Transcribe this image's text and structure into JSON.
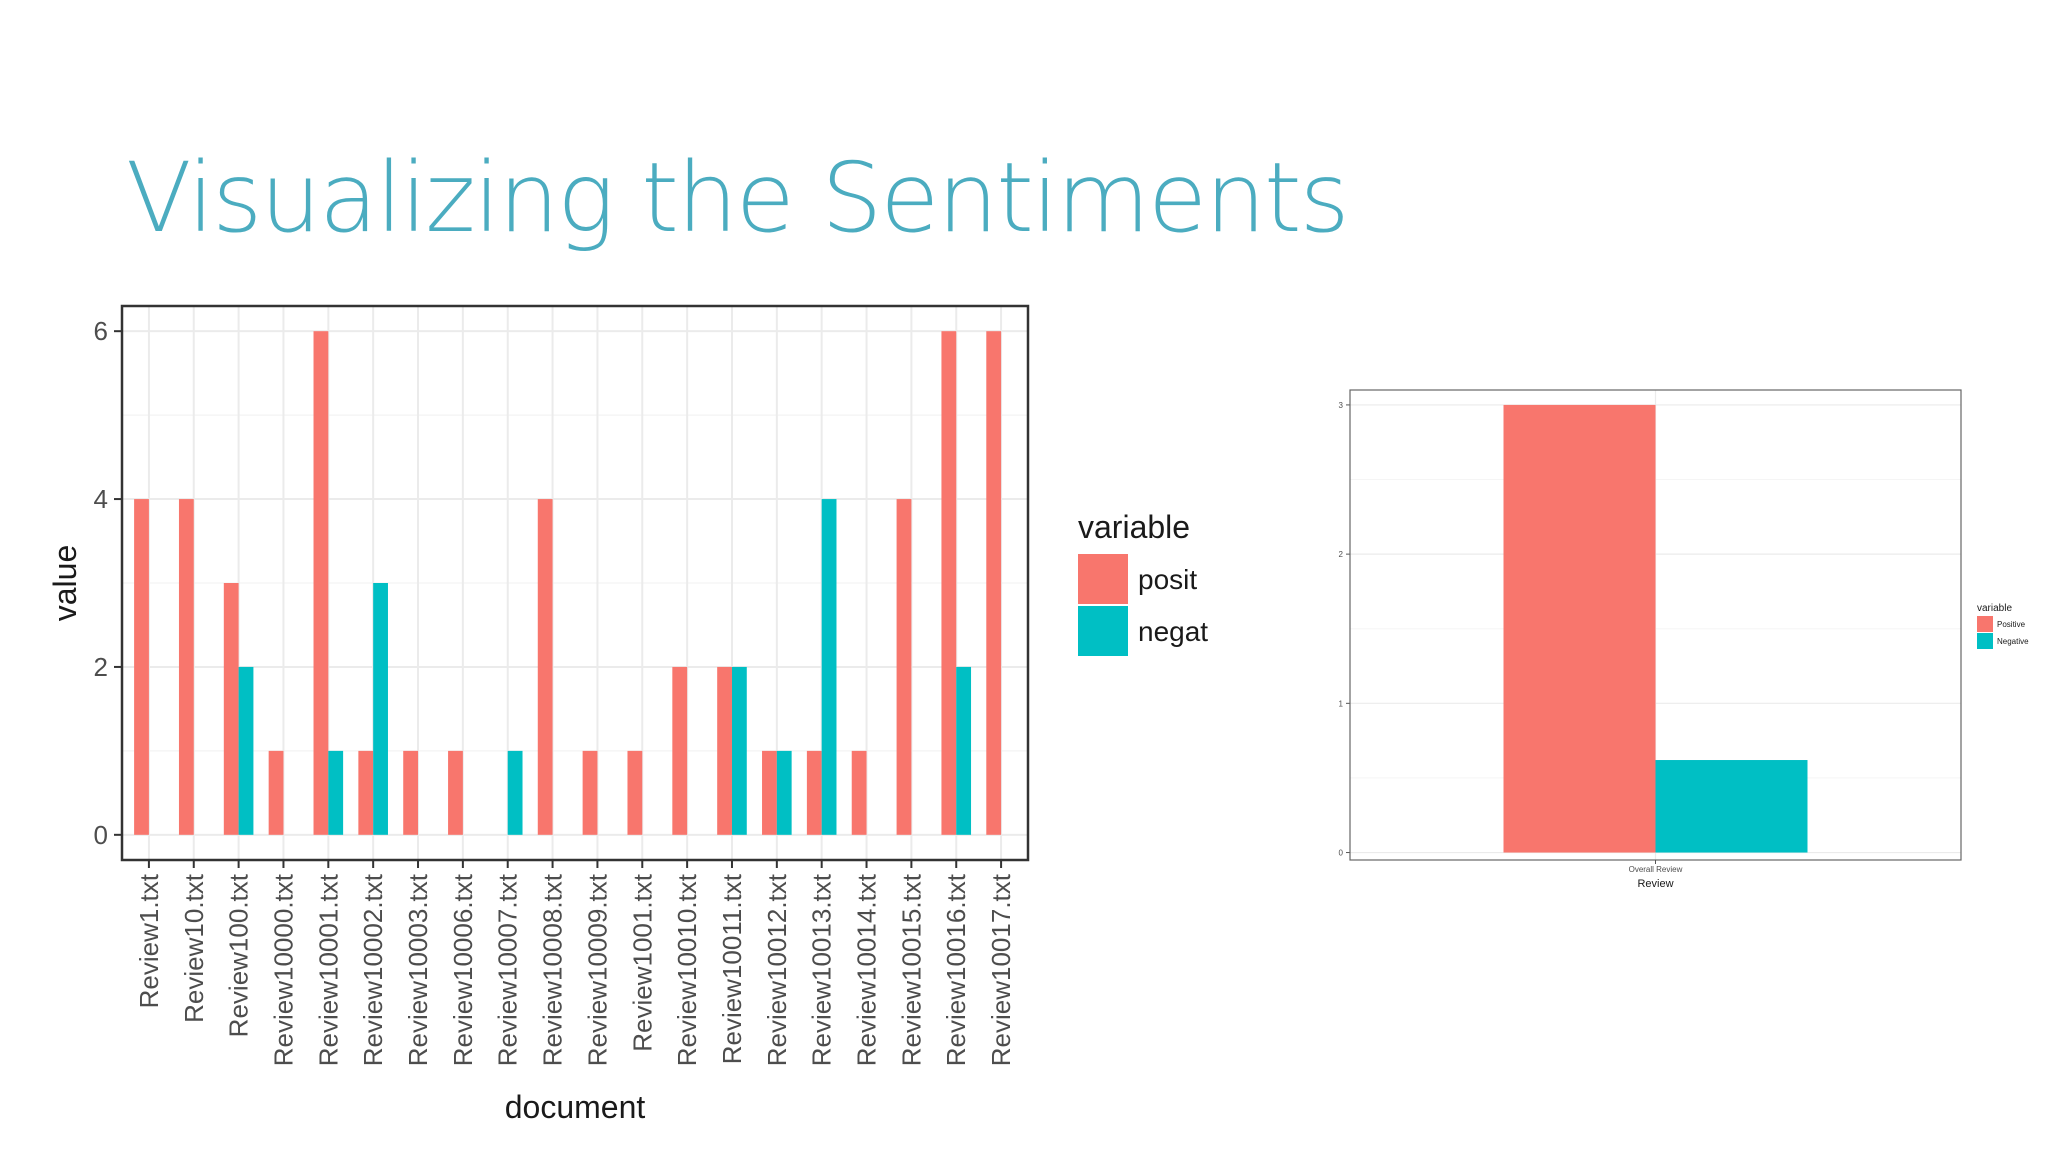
{
  "slide": {
    "title": "Visualizing the Sentiments"
  },
  "colors": {
    "title": "#4bacc0",
    "positive": "#f8766d",
    "negative": "#00bfc4",
    "grid_major": "#ebebeb",
    "grid_minor": "#f5f5f5",
    "panel_border": "#333333"
  },
  "chart_data": [
    {
      "type": "bar",
      "xlabel": "document",
      "ylabel": "value",
      "ylim": [
        0,
        6.3
      ],
      "yticks": [
        0,
        2,
        4,
        6
      ],
      "grid": true,
      "legend": {
        "title": "variable",
        "placement": "right"
      },
      "categories": [
        "Review1.txt",
        "Review10.txt",
        "Review100.txt",
        "Review10000.txt",
        "Review10001.txt",
        "Review10002.txt",
        "Review10003.txt",
        "Review10006.txt",
        "Review10007.txt",
        "Review10008.txt",
        "Review10009.txt",
        "Review1001.txt",
        "Review10010.txt",
        "Review10011.txt",
        "Review10012.txt",
        "Review10013.txt",
        "Review10014.txt",
        "Review10015.txt",
        "Review10016.txt",
        "Review10017.txt"
      ],
      "series": [
        {
          "name": "posit",
          "values": [
            4,
            4,
            3,
            1,
            6,
            1,
            1,
            1,
            0,
            4,
            1,
            1,
            2,
            2,
            1,
            1,
            1,
            4,
            6,
            6
          ]
        },
        {
          "name": "negat",
          "values": [
            0,
            0,
            2,
            0,
            1,
            3,
            0,
            0,
            1,
            0,
            0,
            0,
            0,
            2,
            1,
            4,
            0,
            0,
            2,
            0
          ]
        }
      ]
    },
    {
      "type": "bar",
      "xlabel": "Review",
      "ylabel": "",
      "ylim": [
        -0.05,
        3.1
      ],
      "yticks": [
        0,
        1,
        2,
        3
      ],
      "grid": true,
      "legend": {
        "title": "variable",
        "placement": "right"
      },
      "categories": [
        "Overall Review"
      ],
      "series": [
        {
          "name": "Positive",
          "values": [
            3.0
          ]
        },
        {
          "name": "Negative",
          "values": [
            0.62
          ]
        }
      ]
    }
  ]
}
